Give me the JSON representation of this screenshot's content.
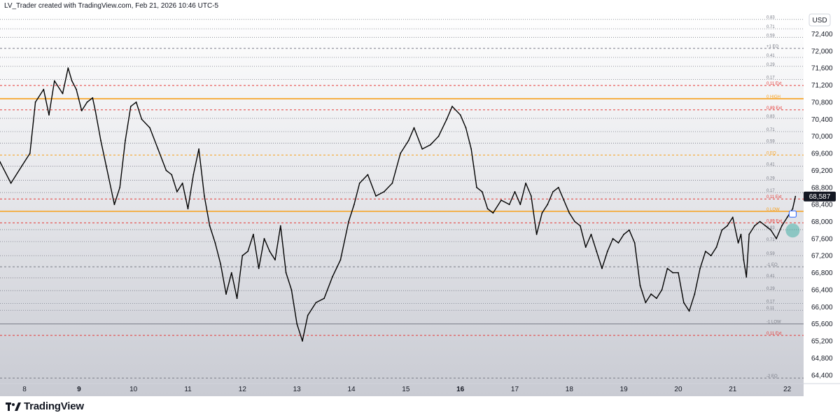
{
  "header": {
    "text": "LV_Trader created with TradingView.com, Feb 21, 2026 10:46 UTC-5"
  },
  "footer": {
    "logo_text": "TradingView"
  },
  "price_axis": {
    "currency": "USD",
    "current_price": "68,587",
    "current_price_value": 68587
  },
  "colors": {
    "orange": "#f7a01c",
    "red": "#e53935",
    "gray": "#787b86",
    "candle": "#000000",
    "marker": "#26a69a"
  },
  "chart_data": {
    "type": "line",
    "ylim": [
      64200,
      72900
    ],
    "y_ticks": [
      64400,
      64800,
      65200,
      65600,
      66000,
      66400,
      66800,
      67200,
      67600,
      68000,
      68400,
      68800,
      69200,
      69600,
      70000,
      70400,
      70800,
      71200,
      71600,
      72000,
      72400
    ],
    "y_tick_labels": [
      "64,400",
      "64,800",
      "65,200",
      "65,600",
      "66,000",
      "66,400",
      "66,800",
      "67,200",
      "67,600",
      "68,000",
      "68,400",
      "68,800",
      "69,200",
      "69,600",
      "70,000",
      "70,400",
      "70,800",
      "71,200",
      "71,600",
      "72,000",
      "72,400"
    ],
    "x_ticks": [
      {
        "label": "8",
        "day": 8,
        "bold": false
      },
      {
        "label": "9",
        "day": 9,
        "bold": true
      },
      {
        "label": "10",
        "day": 10,
        "bold": false
      },
      {
        "label": "11",
        "day": 11,
        "bold": false
      },
      {
        "label": "12",
        "day": 12,
        "bold": false
      },
      {
        "label": "13",
        "day": 13,
        "bold": false
      },
      {
        "label": "14",
        "day": 14,
        "bold": false
      },
      {
        "label": "15",
        "day": 15,
        "bold": false
      },
      {
        "label": "16",
        "day": 16,
        "bold": true
      },
      {
        "label": "17",
        "day": 17,
        "bold": false
      },
      {
        "label": "18",
        "day": 18,
        "bold": false
      },
      {
        "label": "19",
        "day": 19,
        "bold": false
      },
      {
        "label": "20",
        "day": 20,
        "bold": false
      },
      {
        "label": "21",
        "day": 21,
        "bold": false
      },
      {
        "label": "22",
        "day": 22,
        "bold": false
      }
    ],
    "x_range": [
      7.55,
      22.3
    ],
    "series_points": [
      [
        7.55,
        69400
      ],
      [
        7.75,
        68900
      ],
      [
        7.95,
        69300
      ],
      [
        8.1,
        69600
      ],
      [
        8.2,
        70800
      ],
      [
        8.35,
        71100
      ],
      [
        8.45,
        70500
      ],
      [
        8.55,
        71300
      ],
      [
        8.7,
        71000
      ],
      [
        8.8,
        71600
      ],
      [
        8.87,
        71300
      ],
      [
        8.95,
        71100
      ],
      [
        9.05,
        70600
      ],
      [
        9.15,
        70800
      ],
      [
        9.25,
        70900
      ],
      [
        9.3,
        70600
      ],
      [
        9.4,
        69900
      ],
      [
        9.5,
        69300
      ],
      [
        9.65,
        68400
      ],
      [
        9.75,
        68800
      ],
      [
        9.85,
        69900
      ],
      [
        9.95,
        70700
      ],
      [
        10.05,
        70800
      ],
      [
        10.15,
        70400
      ],
      [
        10.3,
        70200
      ],
      [
        10.45,
        69700
      ],
      [
        10.6,
        69200
      ],
      [
        10.7,
        69100
      ],
      [
        10.8,
        68700
      ],
      [
        10.9,
        68900
      ],
      [
        11.0,
        68300
      ],
      [
        11.1,
        69100
      ],
      [
        11.2,
        69700
      ],
      [
        11.3,
        68600
      ],
      [
        11.4,
        67900
      ],
      [
        11.5,
        67500
      ],
      [
        11.6,
        67000
      ],
      [
        11.7,
        66300
      ],
      [
        11.8,
        66800
      ],
      [
        11.9,
        66200
      ],
      [
        12.0,
        67200
      ],
      [
        12.1,
        67300
      ],
      [
        12.2,
        67700
      ],
      [
        12.3,
        66900
      ],
      [
        12.4,
        67600
      ],
      [
        12.5,
        67300
      ],
      [
        12.6,
        67100
      ],
      [
        12.7,
        67900
      ],
      [
        12.8,
        66800
      ],
      [
        12.9,
        66400
      ],
      [
        13.0,
        65600
      ],
      [
        13.1,
        65200
      ],
      [
        13.2,
        65800
      ],
      [
        13.35,
        66100
      ],
      [
        13.5,
        66200
      ],
      [
        13.65,
        66700
      ],
      [
        13.8,
        67100
      ],
      [
        13.95,
        68000
      ],
      [
        14.05,
        68400
      ],
      [
        14.15,
        68900
      ],
      [
        14.3,
        69100
      ],
      [
        14.45,
        68600
      ],
      [
        14.6,
        68700
      ],
      [
        14.75,
        68900
      ],
      [
        14.9,
        69600
      ],
      [
        15.05,
        69900
      ],
      [
        15.15,
        70200
      ],
      [
        15.3,
        69700
      ],
      [
        15.45,
        69800
      ],
      [
        15.6,
        70000
      ],
      [
        15.75,
        70400
      ],
      [
        15.85,
        70700
      ],
      [
        16.0,
        70500
      ],
      [
        16.1,
        70200
      ],
      [
        16.2,
        69700
      ],
      [
        16.3,
        68800
      ],
      [
        16.4,
        68700
      ],
      [
        16.5,
        68300
      ],
      [
        16.6,
        68200
      ],
      [
        16.75,
        68500
      ],
      [
        16.9,
        68400
      ],
      [
        17.0,
        68700
      ],
      [
        17.1,
        68400
      ],
      [
        17.2,
        68900
      ],
      [
        17.3,
        68600
      ],
      [
        17.4,
        67700
      ],
      [
        17.5,
        68200
      ],
      [
        17.6,
        68400
      ],
      [
        17.7,
        68700
      ],
      [
        17.8,
        68800
      ],
      [
        17.9,
        68500
      ],
      [
        18.0,
        68200
      ],
      [
        18.1,
        68000
      ],
      [
        18.2,
        67900
      ],
      [
        18.3,
        67400
      ],
      [
        18.4,
        67700
      ],
      [
        18.5,
        67300
      ],
      [
        18.6,
        66900
      ],
      [
        18.7,
        67300
      ],
      [
        18.8,
        67600
      ],
      [
        18.9,
        67500
      ],
      [
        19.0,
        67700
      ],
      [
        19.1,
        67800
      ],
      [
        19.2,
        67500
      ],
      [
        19.3,
        66500
      ],
      [
        19.4,
        66100
      ],
      [
        19.5,
        66300
      ],
      [
        19.6,
        66200
      ],
      [
        19.7,
        66400
      ],
      [
        19.8,
        66900
      ],
      [
        19.9,
        66800
      ],
      [
        20.0,
        66800
      ],
      [
        20.1,
        66100
      ],
      [
        20.2,
        65900
      ],
      [
        20.3,
        66300
      ],
      [
        20.4,
        66900
      ],
      [
        20.5,
        67300
      ],
      [
        20.6,
        67200
      ],
      [
        20.7,
        67400
      ],
      [
        20.8,
        67800
      ],
      [
        20.9,
        67900
      ],
      [
        21.0,
        68100
      ],
      [
        21.05,
        67800
      ],
      [
        21.1,
        67500
      ],
      [
        21.15,
        67700
      ],
      [
        21.2,
        67100
      ],
      [
        21.25,
        66700
      ],
      [
        21.3,
        67700
      ],
      [
        21.4,
        67900
      ],
      [
        21.5,
        68000
      ],
      [
        21.6,
        67900
      ],
      [
        21.7,
        67800
      ],
      [
        21.8,
        67600
      ],
      [
        21.9,
        67900
      ],
      [
        22.0,
        68100
      ],
      [
        22.1,
        68300
      ],
      [
        22.15,
        68587
      ]
    ],
    "levels": [
      {
        "label": "0.83",
        "price": 72740,
        "color": "#787b86",
        "style": "dotted",
        "labelColor": "#787b86"
      },
      {
        "label": "0.71",
        "price": 72520,
        "color": "#787b86",
        "style": "dotted",
        "labelColor": "#787b86"
      },
      {
        "label": "0.59",
        "price": 72320,
        "color": "#787b86",
        "style": "dotted",
        "labelColor": "#787b86"
      },
      {
        "label": "+1 EQ",
        "price": 72060,
        "color": "#787b86",
        "style": "dashed",
        "labelColor": "#787b86"
      },
      {
        "label": "0.41",
        "price": 71850,
        "color": "#787b86",
        "style": "dotted",
        "labelColor": "#787b86"
      },
      {
        "label": "0.29",
        "price": 71640,
        "color": "#787b86",
        "style": "dotted",
        "labelColor": "#787b86"
      },
      {
        "label": "0.17",
        "price": 71330,
        "color": "#787b86",
        "style": "dotted",
        "labelColor": "#787b86"
      },
      {
        "label": "0.11 Ext",
        "price": 71190,
        "color": "#e53935",
        "style": "dashed",
        "labelColor": "#e53935"
      },
      {
        "label": "0 HIGH",
        "price": 70880,
        "color": "#f7a01c",
        "style": "solid",
        "labelColor": "#f7a01c"
      },
      {
        "label": "0.89 Ext",
        "price": 70620,
        "color": "#e53935",
        "style": "dashed",
        "labelColor": "#e53935"
      },
      {
        "label": "0.83",
        "price": 70420,
        "color": "#787b86",
        "style": "dotted",
        "labelColor": "#787b86"
      },
      {
        "label": "0.71",
        "price": 70110,
        "color": "#787b86",
        "style": "dotted",
        "labelColor": "#787b86"
      },
      {
        "label": "0.59",
        "price": 69840,
        "color": "#787b86",
        "style": "dotted",
        "labelColor": "#787b86"
      },
      {
        "label": "0 EQ",
        "price": 69560,
        "color": "#f7a01c",
        "style": "dashed",
        "labelColor": "#f7a01c"
      },
      {
        "label": "0.41",
        "price": 69300,
        "color": "#787b86",
        "style": "dotted",
        "labelColor": "#787b86"
      },
      {
        "label": "0.29",
        "price": 68970,
        "color": "#787b86",
        "style": "dotted",
        "labelColor": "#787b86"
      },
      {
        "label": "0.17",
        "price": 68680,
        "color": "#787b86",
        "style": "dotted",
        "labelColor": "#787b86"
      },
      {
        "label": "0.11 Ext",
        "price": 68530,
        "color": "#e53935",
        "style": "dashed",
        "labelColor": "#e53935"
      },
      {
        "label": "0 LOW",
        "price": 68240,
        "color": "#f7a01c",
        "style": "solid",
        "labelColor": "#f7a01c"
      },
      {
        "label": "0.89 Ext",
        "price": 67970,
        "color": "#e53935",
        "style": "dashed",
        "labelColor": "#e53935"
      },
      {
        "label": "0.83",
        "price": 67810,
        "color": "#787b86",
        "style": "dotted",
        "labelColor": "#787b86"
      },
      {
        "label": "0.71",
        "price": 67530,
        "color": "#787b86",
        "style": "dotted",
        "labelColor": "#787b86"
      },
      {
        "label": "0.59",
        "price": 67200,
        "color": "#787b86",
        "style": "dotted",
        "labelColor": "#787b86"
      },
      {
        "label": "-1 EQ",
        "price": 66940,
        "color": "#787b86",
        "style": "dashed",
        "labelColor": "#787b86"
      },
      {
        "label": "0.41",
        "price": 66680,
        "color": "#787b86",
        "style": "dotted",
        "labelColor": "#787b86"
      },
      {
        "label": "0.29",
        "price": 66380,
        "color": "#787b86",
        "style": "dotted",
        "labelColor": "#787b86"
      },
      {
        "label": "0.17",
        "price": 66080,
        "color": "#787b86",
        "style": "dotted",
        "labelColor": "#787b86"
      },
      {
        "label": "0.11",
        "price": 65920,
        "color": "#787b86",
        "style": "dotted",
        "labelColor": "#787b86"
      },
      {
        "label": "-1 LOW",
        "price": 65600,
        "color": "#787b86",
        "style": "solid",
        "labelColor": "#787b86"
      },
      {
        "label": "0.11 Ext",
        "price": 65330,
        "color": "#e53935",
        "style": "dashed",
        "labelColor": "#e53935"
      },
      {
        "label": "-2 EQ",
        "price": 64330,
        "color": "#787b86",
        "style": "dashed",
        "labelColor": "#787b86"
      }
    ],
    "marker": {
      "day": 22.1,
      "price": 67790
    }
  }
}
